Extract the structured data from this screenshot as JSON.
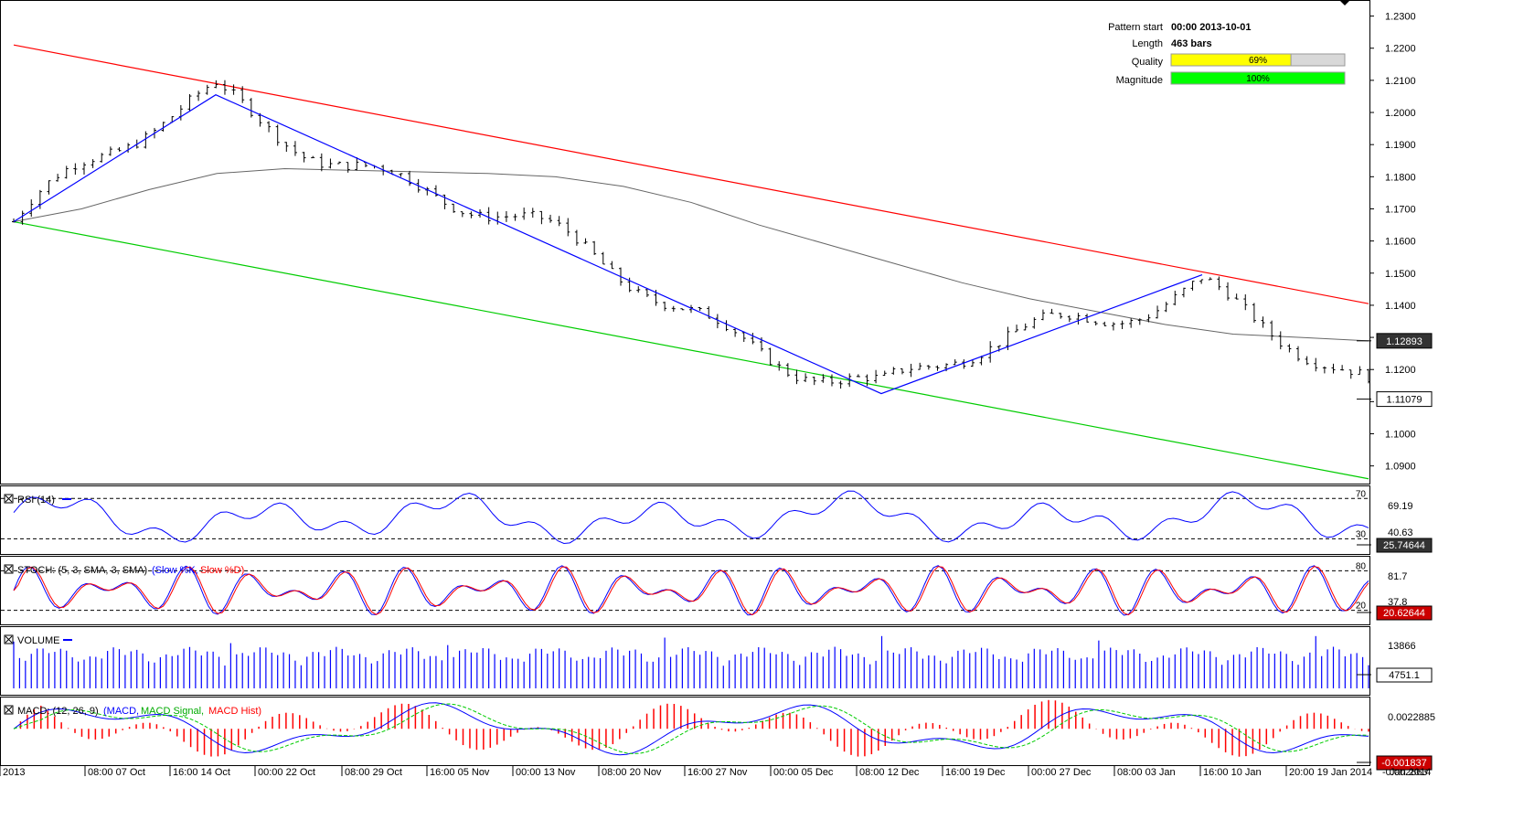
{
  "pattern_info": {
    "pattern_start_label": "Pattern start",
    "pattern_start_value": "00:00 2013-10-01",
    "length_label": "Length",
    "length_value": "463 bars",
    "quality_label": "Quality",
    "quality_value": "69%",
    "quality_fraction": 0.69,
    "magnitude_label": "Magnitude",
    "magnitude_value": "100%",
    "magnitude_fraction": 1.0
  },
  "colors": {
    "resistance": "#ff0000",
    "support": "#00cc00",
    "zigzag": "#0000ff",
    "moving_average": "#666666",
    "bars": "#000000",
    "rsi": "#0000ff",
    "stoch_k": "#0000ff",
    "stoch_d": "#ff0000",
    "volume": "#0000ff",
    "macd": "#0000ff",
    "macd_signal": "#00cc00",
    "macd_hist": "#ff0000",
    "quality_bar": "#ffff00",
    "magnitude_bar": "#00ff00"
  },
  "panels": {
    "rsi_label": "RSI (14)",
    "stoch_label": "STOCH: (5, 3, SMA, 3, SMA)",
    "stoch_k_label": "(Slow %K,",
    "stoch_d_label": "Slow %D)",
    "volume_label": "VOLUME",
    "macd_label": "MACD: (12, 26, 9)",
    "macd_line_label": "(MACD,",
    "macd_signal_label": "MACD Signal,",
    "macd_hist_label": "MACD Hist)"
  },
  "chart_data": {
    "type": "candlestick",
    "price_axis_ticks": [
      "1.2300",
      "1.2200",
      "1.2100",
      "1.2000",
      "1.1900",
      "1.1800",
      "1.1700",
      "1.1600",
      "1.1500",
      "1.1400",
      "1.1300",
      "1.1200",
      "1.1100",
      "1.1000",
      "1.0900"
    ],
    "ylim": [
      1.0845,
      1.235
    ],
    "current_price_labels": [
      "1.12893",
      "1.11079"
    ],
    "time_labels": [
      "2013",
      "08:00 07 Oct",
      "16:00 14 Oct",
      "00:00 22 Oct",
      "08:00 29 Oct",
      "16:00 05 Nov",
      "00:00 13 Nov",
      "08:00 20 Nov",
      "16:00 27 Nov",
      "00:00 05 Dec",
      "08:00 12 Dec",
      "16:00 19 Dec",
      "00:00 27 Dec",
      "08:00 03 Jan",
      "16:00 10 Jan",
      "20:00 19 Jan 2014",
      "Jan 2014"
    ],
    "pivots": [
      {
        "time": "2013-10-01 00:00",
        "price": 1.166
      },
      {
        "time": "2013-10-18",
        "price": 1.2055
      },
      {
        "time": "2013-12-13",
        "price": 1.1125
      },
      {
        "time": "2014-01-09",
        "price": 1.1495
      },
      {
        "time": "2014-01-23",
        "price": 1.1108
      }
    ],
    "resistance_line": [
      {
        "time": "2013-10-01 00:00",
        "price": 1.221
      },
      {
        "time": "2014-01-23",
        "price": 1.1405
      }
    ],
    "support_line": [
      {
        "time": "2013-10-01 00:00",
        "price": 1.166
      },
      {
        "time": "2014-01-23",
        "price": 1.086
      }
    ],
    "moving_average": [
      1.166,
      1.17,
      1.176,
      1.181,
      1.1825,
      1.182,
      1.1815,
      1.181,
      1.18,
      1.177,
      1.172,
      1.165,
      1.159,
      1.153,
      1.147,
      1.142,
      1.138,
      1.134,
      1.131,
      1.13,
      1.1289
    ],
    "rsi": {
      "name": "RSI (14)",
      "levels": [
        70,
        30
      ],
      "axis_labels": [
        "70",
        "69.19",
        "40.63",
        "30"
      ],
      "current": "25.74644"
    },
    "stochastic": {
      "levels": [
        80,
        20
      ],
      "axis_labels": [
        "80",
        "81.7",
        "37.8",
        "20"
      ],
      "current": "20.62644"
    },
    "volume": {
      "axis_labels": [
        "13866"
      ],
      "current": "4751.1"
    },
    "macd": {
      "axis_labels": [
        "0.0022885",
        "-0.002863"
      ],
      "current": "-0.001837"
    }
  }
}
